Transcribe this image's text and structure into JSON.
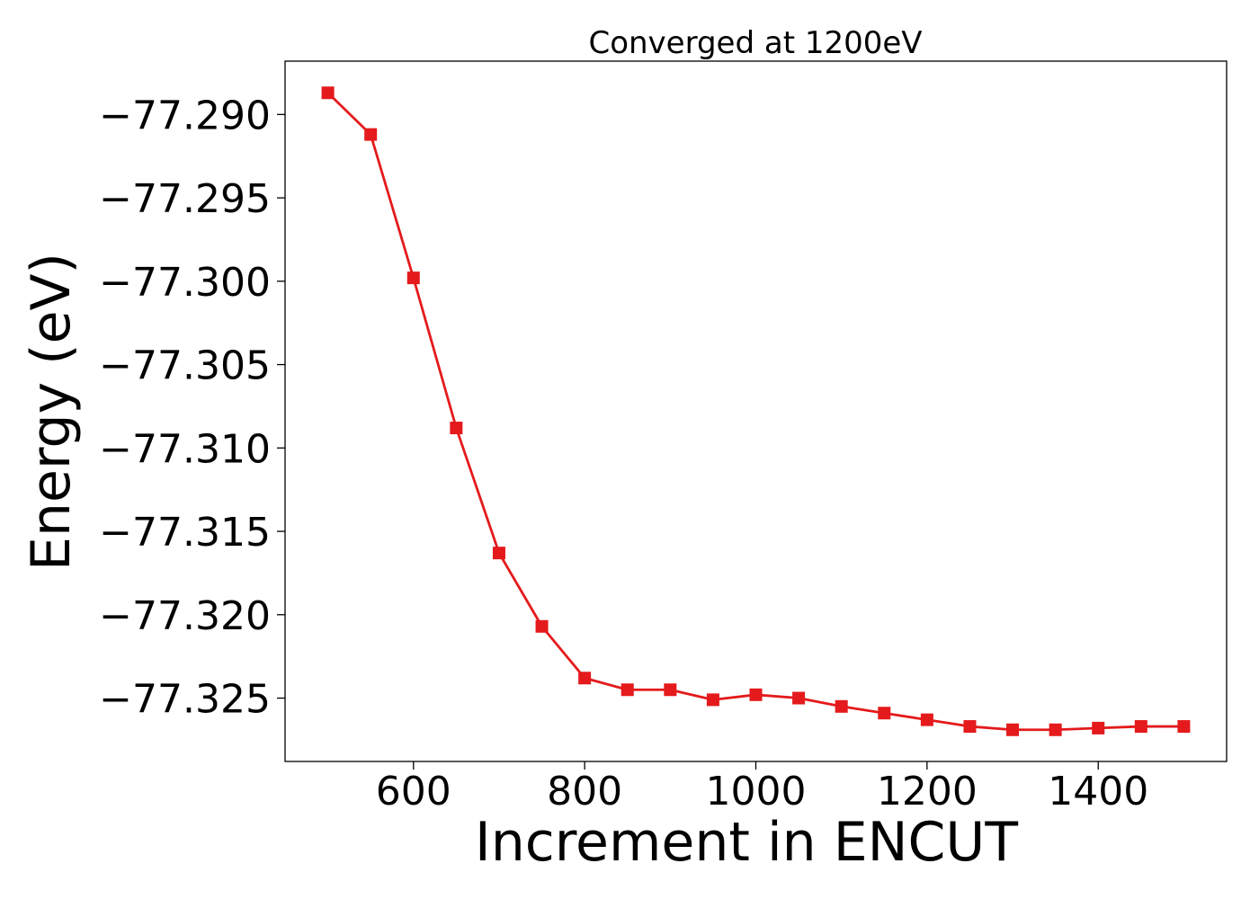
{
  "chart_data": {
    "type": "line",
    "title": "Converged at 1200eV",
    "xlabel": "Increment in ENCUT",
    "ylabel": "Energy (eV)",
    "xlim": [
      450,
      1550
    ],
    "ylim": [
      -77.3288,
      -77.2868
    ],
    "x_ticks": [
      600,
      800,
      1000,
      1200,
      1400
    ],
    "x_tick_labels": [
      "600",
      "800",
      "1000",
      "1200",
      "1400"
    ],
    "y_ticks": [
      -77.29,
      -77.295,
      -77.3,
      -77.305,
      -77.31,
      -77.315,
      -77.32,
      -77.325
    ],
    "y_tick_labels": [
      "−77.290",
      "−77.295",
      "−77.300",
      "−77.305",
      "−77.310",
      "−77.315",
      "−77.320",
      "−77.325"
    ],
    "grid": false,
    "legend": false,
    "series": [
      {
        "color": "#e41a1c",
        "marker": "square",
        "x": [
          500,
          550,
          600,
          650,
          700,
          750,
          800,
          850,
          900,
          950,
          1000,
          1050,
          1100,
          1150,
          1200,
          1250,
          1300,
          1350,
          1400,
          1450,
          1500
        ],
        "y": [
          -77.2887,
          -77.2912,
          -77.2998,
          -77.3088,
          -77.3163,
          -77.3207,
          -77.3238,
          -77.3245,
          -77.3245,
          -77.3251,
          -77.3248,
          -77.325,
          -77.3255,
          -77.3259,
          -77.3263,
          -77.3267,
          -77.3269,
          -77.3269,
          -77.3268,
          -77.3267,
          -77.3267
        ]
      }
    ]
  }
}
